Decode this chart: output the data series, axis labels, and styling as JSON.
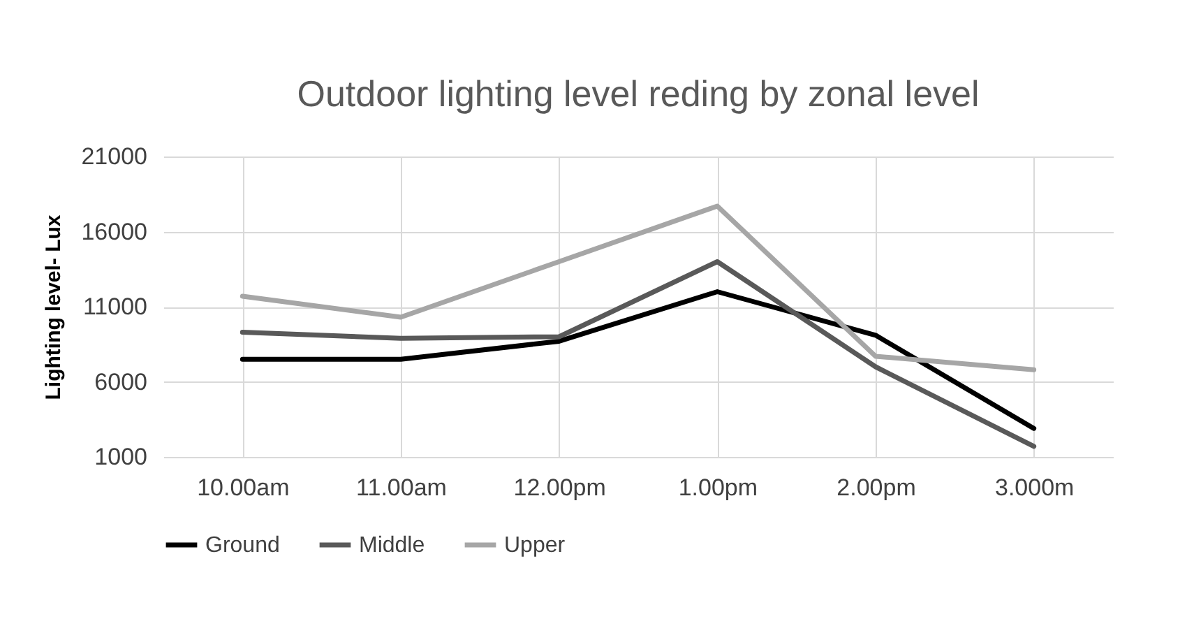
{
  "chart_data": {
    "type": "line",
    "title": "Outdoor lighting level  reding by zonal level",
    "ylabel": "Lighting level- Lux",
    "categories": [
      "10.00am",
      "11.00am",
      "12.00pm",
      "1.00pm",
      "2.00pm",
      "3.000m"
    ],
    "series": [
      {
        "name": "Ground",
        "color": "#000000",
        "values": [
          7500,
          7500,
          8700,
          12000,
          9100,
          2900
        ]
      },
      {
        "name": "Middle",
        "color": "#595959",
        "values": [
          9300,
          8900,
          9000,
          14000,
          7000,
          1700
        ]
      },
      {
        "name": "Upper",
        "color": "#a6a6a6",
        "values": [
          11700,
          10300,
          14000,
          17700,
          7700,
          6800
        ]
      }
    ],
    "ylim": [
      1000,
      21000
    ],
    "yticks": [
      1000,
      6000,
      11000,
      16000,
      21000
    ],
    "grid": true,
    "legend": "bottom",
    "marker": "none",
    "line_style": "solid"
  }
}
